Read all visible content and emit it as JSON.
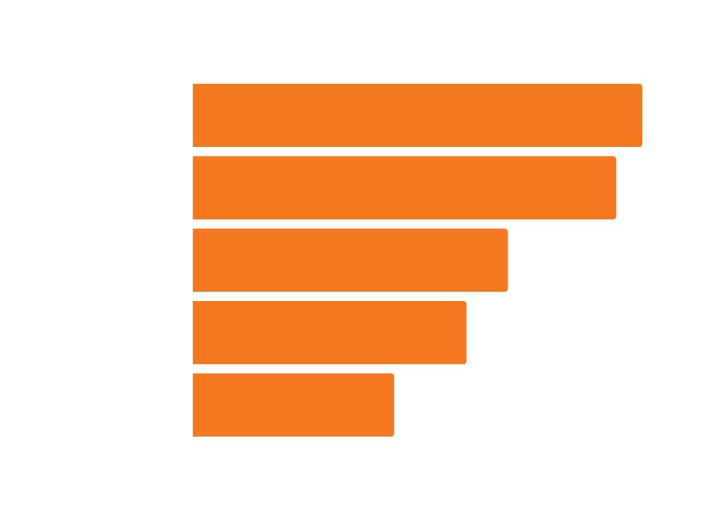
{
  "chart_data": {
    "type": "bar",
    "orientation": "horizontal",
    "categories": [
      "",
      "",
      "",
      "",
      ""
    ],
    "values": [
      100,
      94.2,
      70.1,
      60.9,
      44.8
    ],
    "xlim": [
      0,
      100
    ],
    "grid": false,
    "legend": "none",
    "bar_color": "#f47920"
  }
}
